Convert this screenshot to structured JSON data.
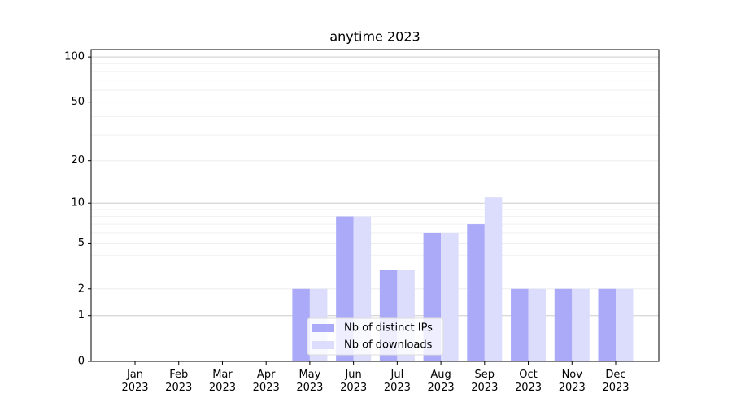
{
  "chart_data": {
    "type": "bar",
    "title": "anytime 2023",
    "categories": [
      "Jan\n2023",
      "Feb\n2023",
      "Mar\n2023",
      "Apr\n2023",
      "May\n2023",
      "Jun\n2023",
      "Jul\n2023",
      "Aug\n2023",
      "Sep\n2023",
      "Oct\n2023",
      "Nov\n2023",
      "Dec\n2023"
    ],
    "series": [
      {
        "name": "Nb of distinct IPs",
        "color": "#aaaaf9",
        "values": [
          0,
          0,
          0,
          0,
          2,
          8,
          3,
          6,
          7,
          2,
          2,
          2
        ]
      },
      {
        "name": "Nb of downloads",
        "color": "#dcdcfc",
        "values": [
          0,
          0,
          0,
          0,
          2,
          8,
          3,
          6,
          11,
          2,
          2,
          2
        ]
      }
    ],
    "yscale": "log1p",
    "ylim": [
      0,
      112
    ],
    "yticks": [
      0,
      1,
      2,
      5,
      10,
      20,
      50,
      100
    ],
    "yminor": [
      3,
      4,
      6,
      7,
      8,
      9,
      30,
      40,
      60,
      70,
      80,
      90
    ],
    "grid": true,
    "legend": "lower center"
  }
}
